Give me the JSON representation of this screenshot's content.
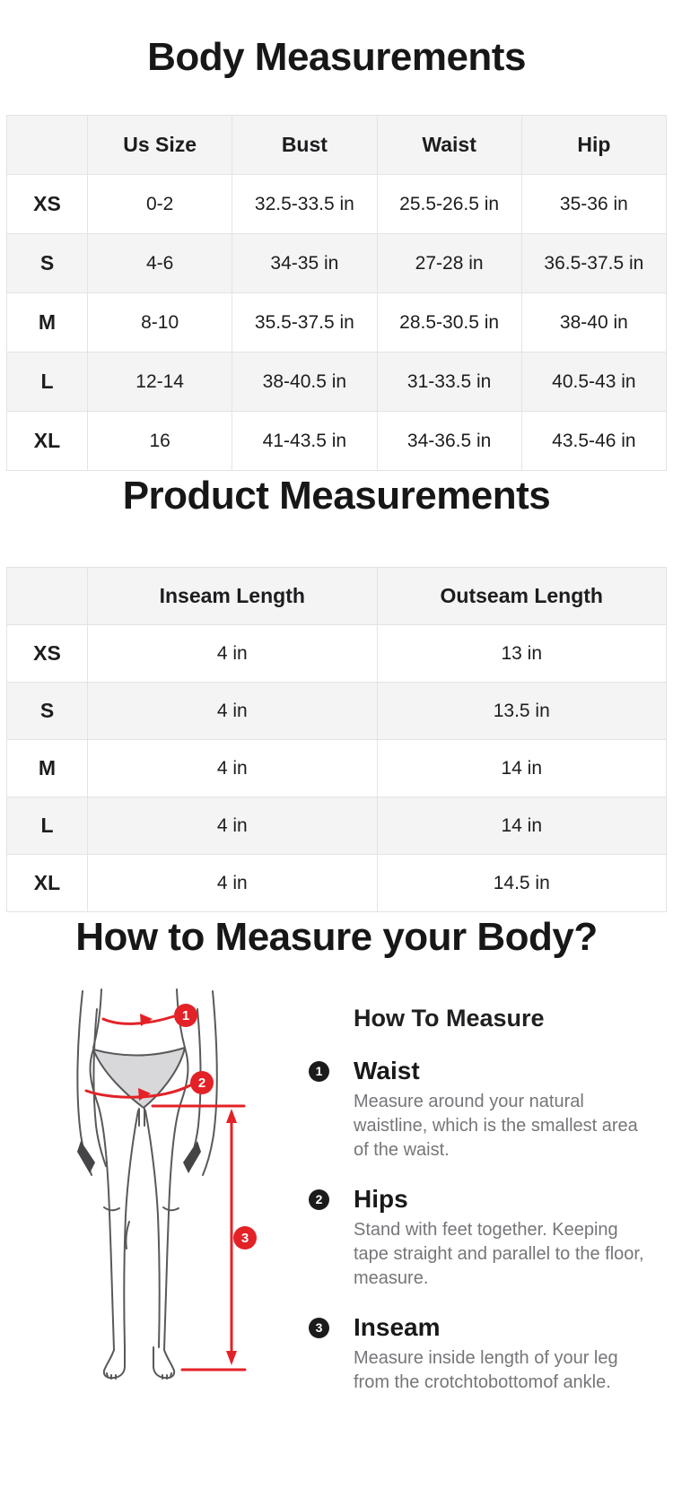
{
  "body_measurements": {
    "title": "Body Measurements",
    "columns": [
      "",
      "Us Size",
      "Bust",
      "Waist",
      "Hip"
    ],
    "rows": [
      {
        "size": "XS",
        "values": [
          "0-2",
          "32.5-33.5 in",
          "25.5-26.5 in",
          "35-36 in"
        ]
      },
      {
        "size": "S",
        "values": [
          "4-6",
          "34-35 in",
          "27-28 in",
          "36.5-37.5 in"
        ]
      },
      {
        "size": "M",
        "values": [
          "8-10",
          "35.5-37.5 in",
          "28.5-30.5 in",
          "38-40 in"
        ]
      },
      {
        "size": "L",
        "values": [
          "12-14",
          "38-40.5 in",
          "31-33.5 in",
          "40.5-43 in"
        ]
      },
      {
        "size": "XL",
        "values": [
          "16",
          "41-43.5 in",
          "34-36.5 in",
          "43.5-46 in"
        ]
      }
    ]
  },
  "product_measurements": {
    "title": "Product Measurements",
    "columns": [
      "",
      "Inseam Length",
      "Outseam Length"
    ],
    "rows": [
      {
        "size": "XS",
        "values": [
          "4 in",
          "13 in"
        ]
      },
      {
        "size": "S",
        "values": [
          "4 in",
          "13.5 in"
        ]
      },
      {
        "size": "M",
        "values": [
          "4 in",
          "14 in"
        ]
      },
      {
        "size": "L",
        "values": [
          "4 in",
          "14 in"
        ]
      },
      {
        "size": "XL",
        "values": [
          "4 in",
          "14.5 in"
        ]
      }
    ]
  },
  "how_to_measure": {
    "title": "How to Measure your Body?",
    "subtitle": "How To Measure",
    "steps": [
      {
        "num": "1",
        "label": "Waist",
        "desc": "Measure around your natural waistline, which is the smallest area of the waist."
      },
      {
        "num": "2",
        "label": "Hips",
        "desc": "Stand with feet together. Keeping tape straight and parallel to the floor, measure."
      },
      {
        "num": "3",
        "label": "Inseam",
        "desc": "Measure inside length of your leg from the crotchtobottomof ankle."
      }
    ],
    "diagram": {
      "marker_labels": [
        "1",
        "2",
        "3"
      ]
    }
  },
  "colors": {
    "accent_red": "#e32227",
    "bullet_black": "#1b1b1d",
    "stripe_gray": "#f4f4f5",
    "border_gray": "#e3e3e4",
    "text_dark": "#1d1d1f",
    "text_gray": "#76767a"
  }
}
